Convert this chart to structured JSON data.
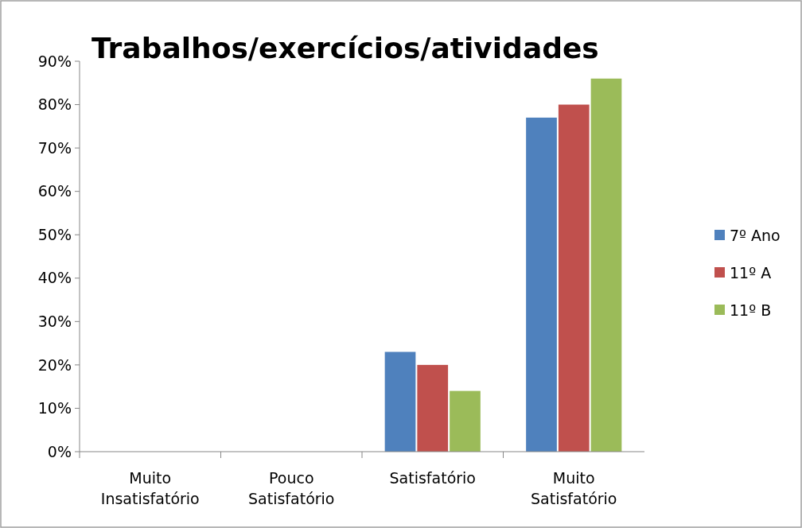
{
  "chart_data": {
    "type": "bar",
    "title": "Trabalhos/exercícios/atividades",
    "categories": [
      "Muito Insatisfatório",
      "Pouco Satisfatório",
      "Satisfatório",
      "Muito Satisfatório"
    ],
    "series": [
      {
        "name": "7º Ano",
        "color": "#4f81bd",
        "values": [
          0,
          0,
          23,
          77
        ]
      },
      {
        "name": "11º A",
        "color": "#c0504d",
        "values": [
          0,
          0,
          20,
          80
        ]
      },
      {
        "name": "11º B",
        "color": "#9bbb59",
        "values": [
          0,
          0,
          14,
          86
        ]
      }
    ],
    "ylim": [
      0,
      90
    ],
    "yticks": [
      {
        "value": 0,
        "label": "0%"
      },
      {
        "value": 10,
        "label": "10%"
      },
      {
        "value": 20,
        "label": "20%"
      },
      {
        "value": 30,
        "label": "30%"
      },
      {
        "value": 40,
        "label": "40%"
      },
      {
        "value": 50,
        "label": "50%"
      },
      {
        "value": 60,
        "label": "60%"
      },
      {
        "value": 70,
        "label": "70%"
      },
      {
        "value": 80,
        "label": "80%"
      },
      {
        "value": 90,
        "label": "90%"
      }
    ],
    "grid": false,
    "legend": "right"
  }
}
